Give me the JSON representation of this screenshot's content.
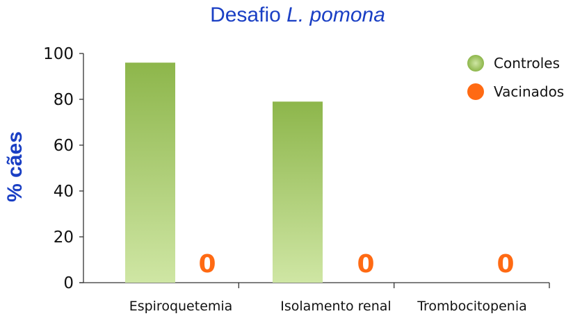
{
  "chart_data": {
    "type": "bar",
    "title": "Desafio L. pomona",
    "title_parts": [
      "Desafio ",
      "L. pomona"
    ],
    "ylabel": "% cães",
    "xlabel": "",
    "ylim": [
      0,
      100
    ],
    "yticks": [
      0,
      20,
      40,
      60,
      80,
      100
    ],
    "categories": [
      "Espiroquetemia",
      "Isolamento renal",
      "Trombocitopenia"
    ],
    "series": [
      {
        "name": "Controles",
        "values": [
          96,
          79,
          0
        ],
        "color": "#8db64b",
        "color_light": "#cfe6a4"
      },
      {
        "name": "Vacinados",
        "values": [
          0,
          0,
          0
        ],
        "color": "#ff6a13",
        "data_labels": [
          "0",
          "0",
          "0"
        ]
      }
    ],
    "legend_position": "top-right",
    "grid": false
  }
}
